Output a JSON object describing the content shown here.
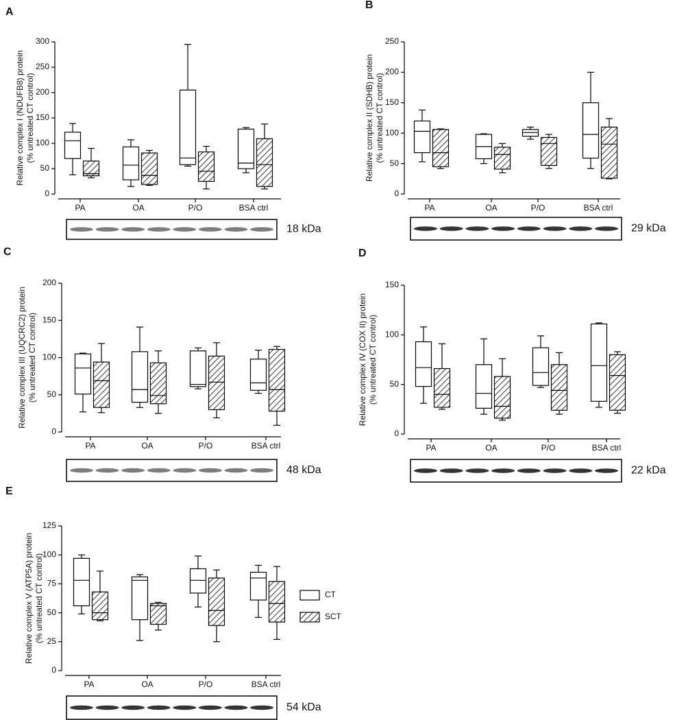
{
  "chart_data": [
    {
      "type": "box",
      "label": "A",
      "ylabel": [
        "Relative complex I (NDUFB8) protein",
        "(% untreated CT control)"
      ],
      "blot_label": "18 kDa",
      "categories": [
        "PA",
        "OA",
        "P/O",
        "BSA ctrl"
      ],
      "ylim": [
        0,
        300
      ],
      "yticks": [
        0,
        50,
        100,
        150,
        200,
        250,
        300
      ],
      "series": [
        {
          "pattern": "none",
          "values": [
            [
              38,
              70,
              105,
              122,
              139
            ],
            [
              15,
              28,
              57,
              93,
              107
            ],
            [
              55,
              58,
              71,
              205,
              295
            ],
            [
              42,
              50,
              61,
              128,
              131
            ]
          ]
        },
        {
          "pattern": "hatch",
          "values": [
            [
              32,
              36,
              40,
              65,
              90
            ],
            [
              17,
              19,
              37,
              81,
              86
            ],
            [
              10,
              25,
              45,
              83,
              94
            ],
            [
              10,
              15,
              58,
              109,
              138
            ]
          ]
        }
      ]
    },
    {
      "type": "box",
      "label": "B",
      "ylabel": [
        "Relative complex II (SDHB) protein",
        "(% untreated CT control)"
      ],
      "blot_label": "29 kDa",
      "categories": [
        "PA",
        "OA",
        "P/O",
        "BSA ctrl"
      ],
      "ylim": [
        0,
        250
      ],
      "yticks": [
        0,
        50,
        100,
        150,
        200,
        250
      ],
      "series": [
        {
          "pattern": "none",
          "values": [
            [
              53,
              68,
              103,
              120,
              138
            ],
            [
              50,
              58,
              78,
              98,
              99
            ],
            [
              90,
              95,
              101,
              106,
              110
            ],
            [
              42,
              59,
              98,
              150,
              200
            ]
          ]
        },
        {
          "pattern": "hatch",
          "values": [
            [
              42,
              45,
              68,
              106,
              107
            ],
            [
              35,
              41,
              65,
              77,
              83
            ],
            [
              42,
              47,
              83,
              93,
              98
            ],
            [
              25,
              26,
              82,
              110,
              124
            ]
          ]
        }
      ]
    },
    {
      "type": "box",
      "label": "C",
      "ylabel": [
        "Relative complex III (UQCRC2) protein",
        "(% untreated CT control)"
      ],
      "blot_label": "48 kDa",
      "categories": [
        "PA",
        "OA",
        "P/O",
        "BSA ctrl"
      ],
      "ylim": [
        0,
        200
      ],
      "yticks": [
        0,
        50,
        100,
        150,
        200
      ],
      "series": [
        {
          "pattern": "none",
          "values": [
            [
              27,
              51,
              86,
              105,
              106
            ],
            [
              33,
              40,
              57,
              108,
              141
            ],
            [
              58,
              61,
              64,
              109,
              113
            ],
            [
              52,
              56,
              66,
              98,
              110
            ]
          ]
        },
        {
          "pattern": "hatch",
          "values": [
            [
              26,
              33,
              69,
              94,
              119
            ],
            [
              25,
              38,
              49,
              93,
              109
            ],
            [
              19,
              30,
              67,
              102,
              120
            ],
            [
              9,
              28,
              57,
              111,
              115
            ]
          ]
        }
      ]
    },
    {
      "type": "box",
      "label": "D",
      "ylabel": [
        "Relative complex IV (COX II) protein",
        "(% untreated CT control)"
      ],
      "blot_label": "22 kDa",
      "categories": [
        "PA",
        "OA",
        "P/O",
        "BSA ctrl"
      ],
      "ylim": [
        0,
        150
      ],
      "yticks": [
        0,
        50,
        100,
        150
      ],
      "series": [
        {
          "pattern": "none",
          "values": [
            [
              31,
              48,
              67,
              93,
              108
            ],
            [
              20,
              26,
              41,
              70,
              96
            ],
            [
              47,
              49,
              62,
              87,
              99
            ],
            [
              27,
              33,
              69,
              111,
              112
            ]
          ]
        },
        {
          "pattern": "hatch",
          "values": [
            [
              25,
              27,
              40,
              66,
              91
            ],
            [
              14,
              16,
              28,
              58,
              76
            ],
            [
              20,
              24,
              44,
              70,
              82
            ],
            [
              21,
              24,
              59,
              80,
              83
            ]
          ]
        }
      ]
    },
    {
      "type": "box",
      "label": "E",
      "ylabel": [
        "Relative complex V (ATP5A) protein",
        "(% untreated CT control)"
      ],
      "blot_label": "54 kDa",
      "categories": [
        "PA",
        "OA",
        "P/O",
        "BSA ctrl"
      ],
      "ylim": [
        0,
        125
      ],
      "yticks": [
        0,
        25,
        50,
        75,
        100,
        125
      ],
      "series": [
        {
          "name": "CT",
          "pattern": "none",
          "values": [
            [
              49,
              56,
              78,
              97,
              100
            ],
            [
              26,
              44,
              78,
              81,
              83
            ],
            [
              55,
              67,
              78,
              88,
              99
            ],
            [
              46,
              61,
              80,
              85,
              91
            ]
          ]
        },
        {
          "name": "SCT",
          "pattern": "hatch",
          "values": [
            [
              43,
              44,
              50,
              68,
              86
            ],
            [
              35,
              40,
              56,
              58,
              59
            ],
            [
              25,
              39,
              52,
              80,
              87
            ],
            [
              27,
              42,
              58,
              77,
              90
            ]
          ]
        }
      ]
    }
  ]
}
